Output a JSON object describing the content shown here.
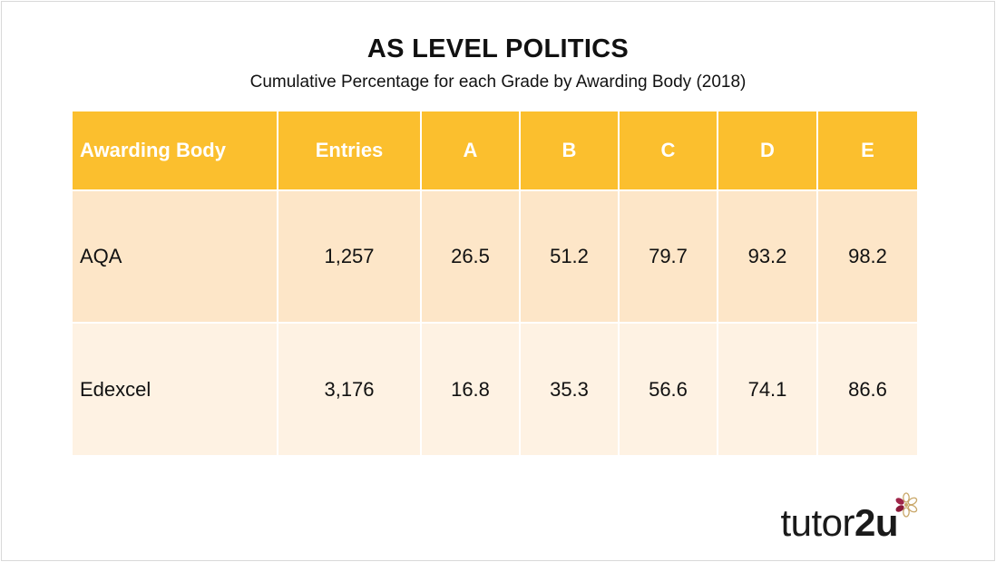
{
  "title": "AS LEVEL POLITICS",
  "subtitle": "Cumulative Percentage for each Grade by Awarding Body (2018)",
  "table": {
    "headers": [
      "Awarding Body",
      "Entries",
      "A",
      "B",
      "C",
      "D",
      "E"
    ],
    "rows": [
      [
        "AQA",
        "1,257",
        "26.5",
        "51.2",
        "79.7",
        "93.2",
        "98.2"
      ],
      [
        "Edexcel",
        "3,176",
        "16.8",
        "35.3",
        "56.6",
        "74.1",
        "86.6"
      ]
    ]
  },
  "logo": {
    "text_light": "tutor",
    "text_bold": "2u",
    "icon": "flower-icon"
  },
  "colors": {
    "header": "#fbbf2e",
    "row1": "#fde6c8",
    "row2": "#fef2e3"
  }
}
